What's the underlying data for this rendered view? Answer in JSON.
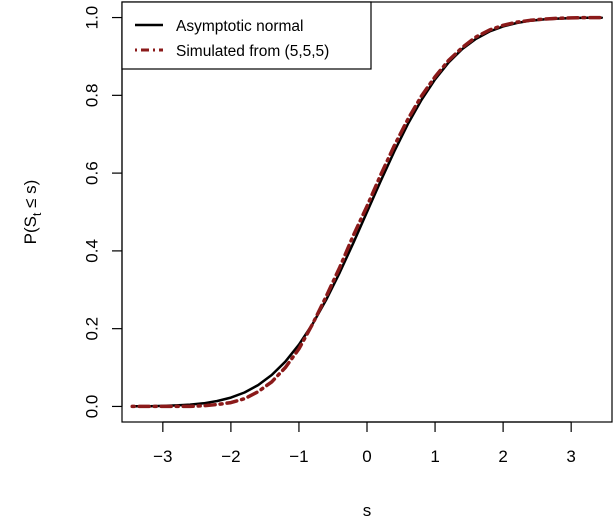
{
  "chart_data": {
    "type": "line",
    "title": "",
    "xlabel": "s",
    "ylabel_main": "P(S",
    "ylabel_sub": "t",
    "ylabel_rest": " ≤ s)",
    "xlim": [
      -3.6,
      3.6
    ],
    "ylim": [
      -0.04,
      1.04
    ],
    "x_ticks": [
      -3,
      -2,
      -1,
      0,
      1,
      2,
      3
    ],
    "x_tick_labels": [
      "−3",
      "−2",
      "−1",
      "0",
      "1",
      "2",
      "3"
    ],
    "y_ticks": [
      0.0,
      0.2,
      0.4,
      0.6,
      0.8,
      1.0
    ],
    "y_tick_labels": [
      "0.0",
      "0.2",
      "0.4",
      "0.6",
      "0.8",
      "1.0"
    ],
    "grid": false,
    "legend_position": "top-left",
    "series": [
      {
        "name": "Asymptotic normal",
        "color": "#000000",
        "style": "solid",
        "x": [
          -3.45,
          -3.2,
          -3.0,
          -2.8,
          -2.6,
          -2.4,
          -2.2,
          -2.0,
          -1.8,
          -1.6,
          -1.4,
          -1.2,
          -1.0,
          -0.8,
          -0.6,
          -0.4,
          -0.2,
          0.0,
          0.2,
          0.4,
          0.6,
          0.8,
          1.0,
          1.2,
          1.4,
          1.6,
          1.8,
          2.0,
          2.2,
          2.4,
          2.6,
          2.8,
          3.0,
          3.2,
          3.45
        ],
        "y": [
          0.0003,
          0.0007,
          0.0013,
          0.0026,
          0.0047,
          0.0082,
          0.0139,
          0.0228,
          0.0359,
          0.0548,
          0.0808,
          0.1151,
          0.1587,
          0.2119,
          0.2743,
          0.3446,
          0.4207,
          0.5,
          0.5793,
          0.6554,
          0.7257,
          0.7881,
          0.8413,
          0.8849,
          0.9192,
          0.9452,
          0.9641,
          0.9772,
          0.9861,
          0.9918,
          0.9953,
          0.9974,
          0.9987,
          0.9993,
          0.9997
        ]
      },
      {
        "name": "Simulated from (5,5,5)",
        "color": "#8b1a1a",
        "style": "dotdash",
        "x": [
          -3.45,
          -3.2,
          -3.0,
          -2.8,
          -2.6,
          -2.4,
          -2.2,
          -2.0,
          -1.8,
          -1.6,
          -1.4,
          -1.2,
          -1.0,
          -0.8,
          -0.6,
          -0.4,
          -0.2,
          0.0,
          0.2,
          0.4,
          0.6,
          0.8,
          1.0,
          1.2,
          1.4,
          1.6,
          1.8,
          2.0,
          2.2,
          2.4,
          2.6,
          2.8,
          3.0,
          3.2,
          3.45
        ],
        "y": [
          0.0,
          0.0,
          0.0,
          0.0,
          0.0,
          0.002,
          0.005,
          0.01,
          0.02,
          0.038,
          0.063,
          0.1,
          0.148,
          0.212,
          0.283,
          0.358,
          0.44,
          0.515,
          0.595,
          0.67,
          0.738,
          0.798,
          0.848,
          0.89,
          0.923,
          0.95,
          0.968,
          0.98,
          0.988,
          0.993,
          0.996,
          0.998,
          0.999,
          1.0,
          1.0
        ]
      }
    ]
  }
}
